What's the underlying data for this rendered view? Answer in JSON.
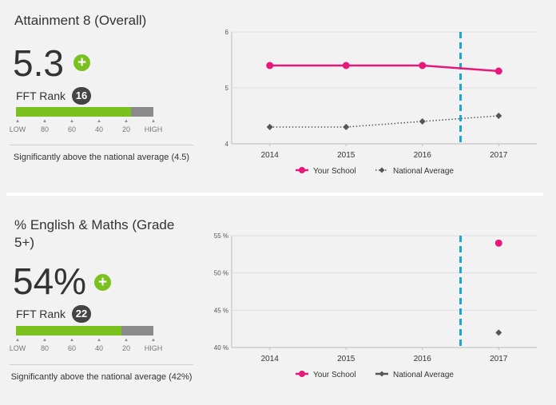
{
  "panels": [
    {
      "title": "Attainment 8 (Overall)",
      "value": "5.3",
      "plus": "+",
      "rank_label": "FFT Rank",
      "rank": "16",
      "bar_fill_fraction": 0.84,
      "scale_labels": [
        "LOW",
        "80",
        "60",
        "40",
        "20",
        "HIGH"
      ],
      "summary": "Significantly above the national average (4.5)",
      "chart_data": {
        "type": "line",
        "x": [
          "2014",
          "2015",
          "2016",
          "2017"
        ],
        "y_ticks": [
          "4",
          "5",
          "6"
        ],
        "ylim": [
          4,
          6
        ],
        "series": [
          {
            "name": "Your School",
            "values": [
              5.4,
              5.4,
              5.4,
              5.3
            ],
            "color": "#e8177a",
            "style": "solid",
            "marker": "circle"
          },
          {
            "name": "National Average",
            "values": [
              4.3,
              4.3,
              4.4,
              4.5
            ],
            "color": "#555555",
            "style": "dotted",
            "marker": "diamond"
          }
        ],
        "marker_line_x": 2016.5,
        "marker_line_color": "#1aa7d6"
      }
    },
    {
      "title": "% English & Maths (Grade 5+)",
      "value": "54%",
      "plus": "+",
      "rank_label": "FFT Rank",
      "rank": "22",
      "bar_fill_fraction": 0.77,
      "scale_labels": [
        "LOW",
        "80",
        "60",
        "40",
        "20",
        "HIGH"
      ],
      "summary": "Significantly above the national average (42%)",
      "chart_data": {
        "type": "scatter",
        "x": [
          "2014",
          "2015",
          "2016",
          "2017"
        ],
        "y_ticks": [
          "40 %",
          "45 %",
          "50 %",
          "55 %"
        ],
        "ylim": [
          40,
          55
        ],
        "series": [
          {
            "name": "Your School",
            "values": [
              null,
              null,
              null,
              54
            ],
            "color": "#e8177a",
            "style": "none",
            "marker": "circle"
          },
          {
            "name": "National Average",
            "values": [
              null,
              null,
              null,
              42
            ],
            "color": "#555555",
            "style": "none",
            "marker": "diamond"
          }
        ],
        "marker_line_x": 2016.5,
        "marker_line_color": "#1aa7d6"
      }
    }
  ]
}
